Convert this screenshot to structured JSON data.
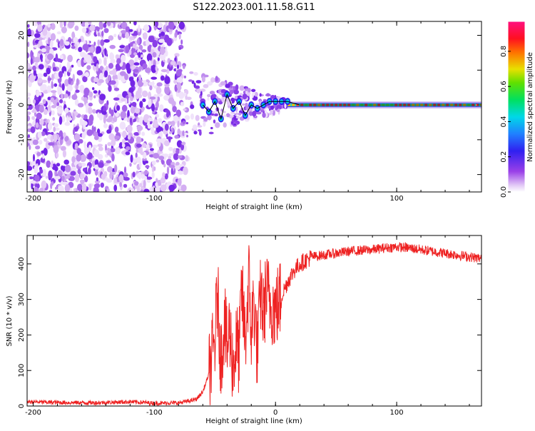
{
  "title": "S122.2023.001.11.58.G11",
  "colors": {
    "snr_line": "#ee2222",
    "ridge_line": "#000000"
  },
  "chart_data": [
    {
      "type": "heatmap",
      "xlabel": "Height of straight line (km)",
      "ylabel": "Frequency (Hz)",
      "xlim": [
        -205,
        170
      ],
      "ylim": [
        -25,
        24
      ],
      "xticks": [
        -200,
        -100,
        0,
        100
      ],
      "xtick_labels": [
        "-200",
        "-100",
        "0",
        "100"
      ],
      "yticks": [
        -20,
        -10,
        0,
        10,
        20
      ],
      "ytick_labels": [
        "-20",
        "-10",
        "0",
        "10",
        "20"
      ],
      "colorbar": {
        "label": "Normalized spectral amplitude",
        "range": [
          0,
          0.97
        ],
        "ticks": [
          0.0,
          0.2,
          0.4,
          0.6,
          0.8
        ],
        "tick_labels": [
          "0.0",
          "0.2",
          "0.4",
          "0.6",
          "0.8"
        ],
        "colormap": "hsv-like (purple-blue-cyan-green-yellow-red-magenta)"
      },
      "ridge": {
        "x": [
          -60,
          -55,
          -50,
          -45,
          -40,
          -35,
          -30,
          -25,
          -20,
          -15,
          -10,
          -5,
          0,
          5,
          10,
          20,
          40,
          60,
          80,
          100,
          120,
          140,
          165
        ],
        "y": [
          0,
          -2,
          1,
          -4,
          3,
          -1,
          1,
          -3,
          0,
          -1,
          0,
          1,
          1,
          1,
          1,
          0,
          0,
          0,
          0,
          0,
          0,
          0,
          0
        ]
      },
      "noise_region_x": [
        -205,
        -75
      ],
      "transition_region_x": [
        -75,
        10
      ],
      "coherent_region_x": [
        10,
        170
      ]
    },
    {
      "type": "line",
      "xlabel": "Height of straight line (km)",
      "ylabel": "SNR (10 * v/v)",
      "xlim": [
        -205,
        170
      ],
      "ylim": [
        0,
        480
      ],
      "xticks": [
        -200,
        -100,
        0,
        100
      ],
      "xtick_labels": [
        "-200",
        "-100",
        "0",
        "100"
      ],
      "yticks": [
        0,
        100,
        200,
        300,
        400
      ],
      "ytick_labels": [
        "0",
        "100",
        "200",
        "300",
        "400"
      ],
      "series": [
        {
          "x": [
            -205,
            -180,
            -150,
            -120,
            -100,
            -80,
            -70,
            -65,
            -60,
            -55,
            -50,
            -48,
            -45,
            -42,
            -40,
            -38,
            -35,
            -32,
            -30,
            -28,
            -25,
            -22,
            -20,
            -18,
            -15,
            -12,
            -10,
            -8,
            -5,
            -2,
            0,
            5,
            10,
            15,
            20,
            25,
            30,
            40,
            50,
            60,
            70,
            80,
            90,
            100,
            110,
            120,
            130,
            140,
            150,
            160,
            170
          ],
          "y": [
            12,
            10,
            9,
            12,
            8,
            9,
            15,
            20,
            40,
            90,
            180,
            320,
            130,
            250,
            150,
            220,
            110,
            180,
            140,
            330,
            180,
            360,
            200,
            300,
            150,
            330,
            250,
            320,
            300,
            280,
            270,
            310,
            350,
            380,
            400,
            410,
            420,
            425,
            430,
            435,
            438,
            440,
            445,
            448,
            445,
            440,
            435,
            430,
            425,
            420,
            415
          ]
        }
      ]
    }
  ]
}
